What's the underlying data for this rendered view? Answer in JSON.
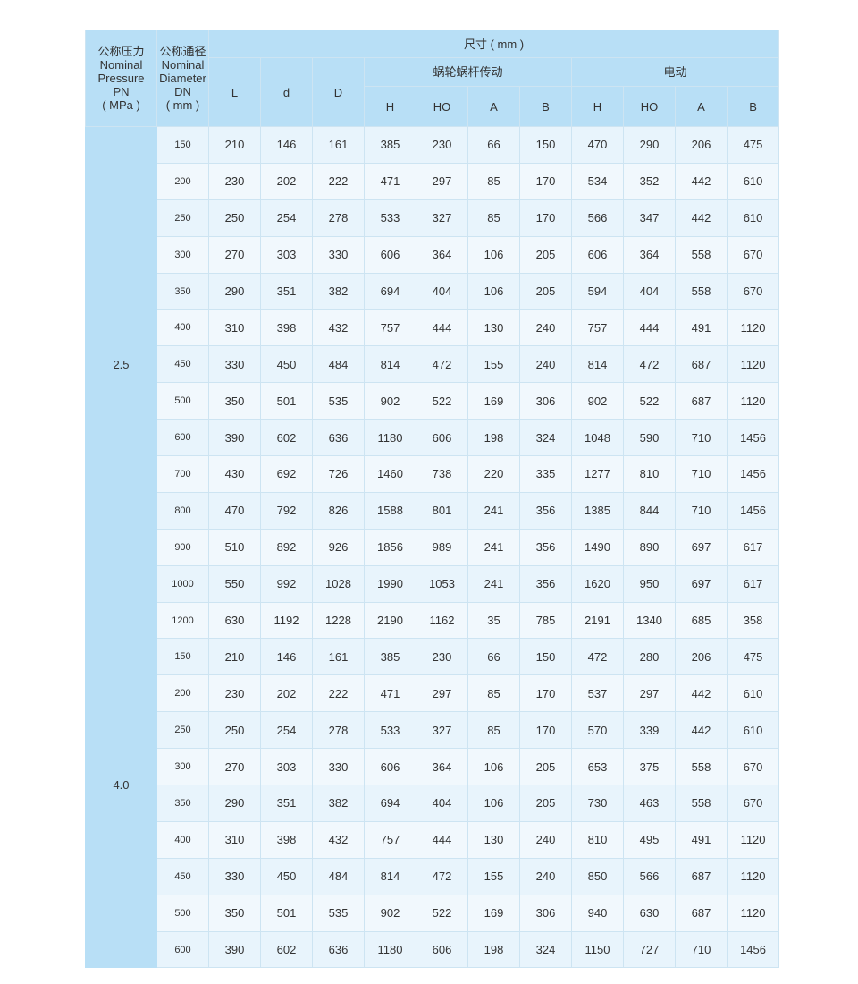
{
  "header": {
    "pn_zh": "公称压力",
    "pn_en1": "Nominal",
    "pn_en2": "Pressure",
    "pn_sym": "PN",
    "pn_unit": "( MPa )",
    "dn_zh": "公称通径",
    "dn_en1": "Nominal",
    "dn_en2": "Diameter",
    "dn_sym": "DN",
    "dn_unit": "( mm )",
    "dims": "尺寸 ( mm )",
    "worm": "蜗轮蜗杆传动",
    "electric": "电动",
    "L": "L",
    "d": "d",
    "D": "D",
    "worm_cols": [
      "H",
      "HO",
      "A",
      "B"
    ],
    "elec_cols": [
      "H",
      "HO",
      "A",
      "B"
    ]
  },
  "groups": [
    {
      "pn": "2.5",
      "rows": [
        [
          "150",
          "210",
          "146",
          "161",
          "385",
          "230",
          "66",
          "150",
          "470",
          "290",
          "206",
          "475"
        ],
        [
          "200",
          "230",
          "202",
          "222",
          "471",
          "297",
          "85",
          "170",
          "534",
          "352",
          "442",
          "610"
        ],
        [
          "250",
          "250",
          "254",
          "278",
          "533",
          "327",
          "85",
          "170",
          "566",
          "347",
          "442",
          "610"
        ],
        [
          "300",
          "270",
          "303",
          "330",
          "606",
          "364",
          "106",
          "205",
          "606",
          "364",
          "558",
          "670"
        ],
        [
          "350",
          "290",
          "351",
          "382",
          "694",
          "404",
          "106",
          "205",
          "594",
          "404",
          "558",
          "670"
        ],
        [
          "400",
          "310",
          "398",
          "432",
          "757",
          "444",
          "130",
          "240",
          "757",
          "444",
          "491",
          "1120"
        ],
        [
          "450",
          "330",
          "450",
          "484",
          "814",
          "472",
          "155",
          "240",
          "814",
          "472",
          "687",
          "1120"
        ],
        [
          "500",
          "350",
          "501",
          "535",
          "902",
          "522",
          "169",
          "306",
          "902",
          "522",
          "687",
          "1120"
        ],
        [
          "600",
          "390",
          "602",
          "636",
          "1180",
          "606",
          "198",
          "324",
          "1048",
          "590",
          "710",
          "1456"
        ],
        [
          "700",
          "430",
          "692",
          "726",
          "1460",
          "738",
          "220",
          "335",
          "1277",
          "810",
          "710",
          "1456"
        ],
        [
          "800",
          "470",
          "792",
          "826",
          "1588",
          "801",
          "241",
          "356",
          "1385",
          "844",
          "710",
          "1456"
        ],
        [
          "900",
          "510",
          "892",
          "926",
          "1856",
          "989",
          "241",
          "356",
          "1490",
          "890",
          "697",
          "617"
        ],
        [
          "1000",
          "550",
          "992",
          "1028",
          "1990",
          "1053",
          "241",
          "356",
          "1620",
          "950",
          "697",
          "617"
        ]
      ]
    },
    {
      "pn": "4.0",
      "rows": [
        [
          "1200",
          "630",
          "1192",
          "1228",
          "2190",
          "1162",
          "35",
          "785",
          "2191",
          "1340",
          "685",
          "358"
        ],
        [
          "150",
          "210",
          "146",
          "161",
          "385",
          "230",
          "66",
          "150",
          "472",
          "280",
          "206",
          "475"
        ],
        [
          "200",
          "230",
          "202",
          "222",
          "471",
          "297",
          "85",
          "170",
          "537",
          "297",
          "442",
          "610"
        ],
        [
          "250",
          "250",
          "254",
          "278",
          "533",
          "327",
          "85",
          "170",
          "570",
          "339",
          "442",
          "610"
        ],
        [
          "300",
          "270",
          "303",
          "330",
          "606",
          "364",
          "106",
          "205",
          "653",
          "375",
          "558",
          "670"
        ],
        [
          "350",
          "290",
          "351",
          "382",
          "694",
          "404",
          "106",
          "205",
          "730",
          "463",
          "558",
          "670"
        ],
        [
          "400",
          "310",
          "398",
          "432",
          "757",
          "444",
          "130",
          "240",
          "810",
          "495",
          "491",
          "1120"
        ],
        [
          "450",
          "330",
          "450",
          "484",
          "814",
          "472",
          "155",
          "240",
          "850",
          "566",
          "687",
          "1120"
        ],
        [
          "500",
          "350",
          "501",
          "535",
          "902",
          "522",
          "169",
          "306",
          "940",
          "630",
          "687",
          "1120"
        ],
        [
          "600",
          "390",
          "602",
          "636",
          "1180",
          "606",
          "198",
          "324",
          "1150",
          "727",
          "710",
          "1456"
        ]
      ]
    }
  ]
}
